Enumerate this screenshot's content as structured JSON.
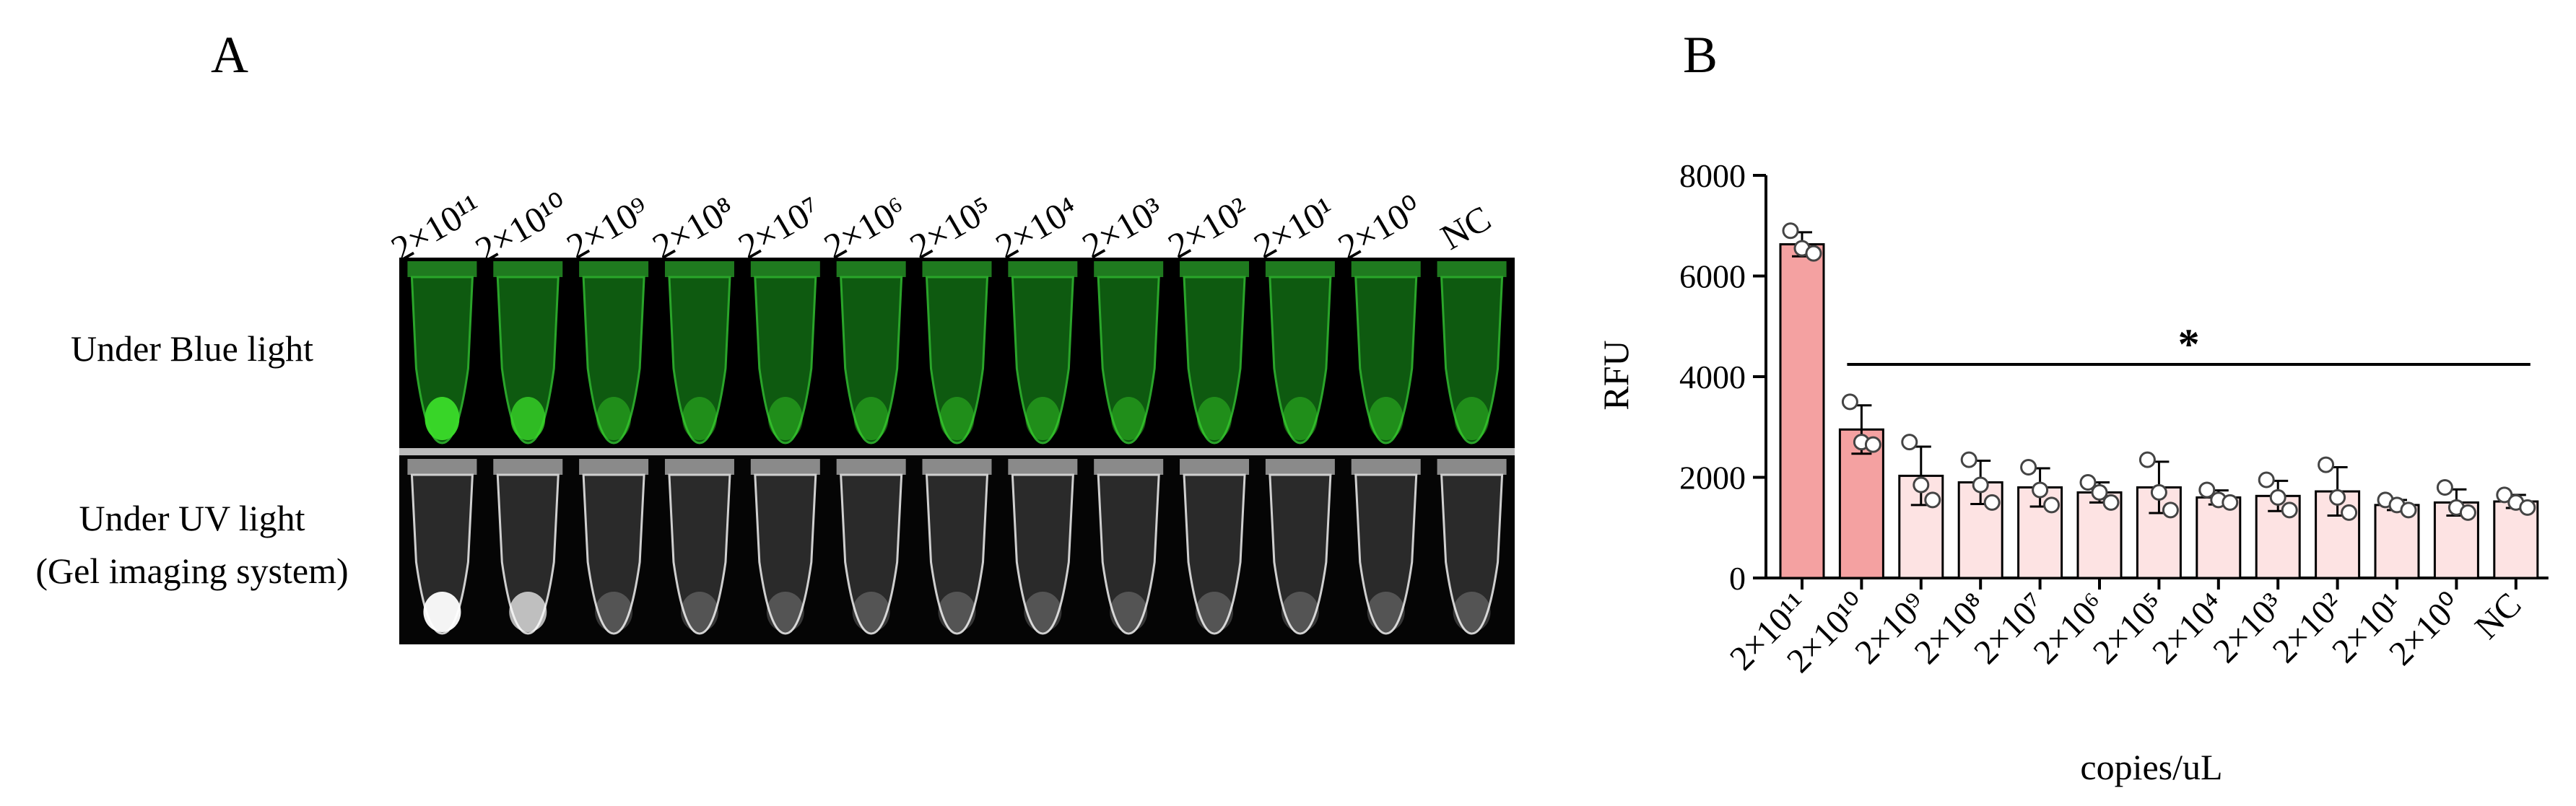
{
  "panel_a": {
    "label": "A",
    "column_labels": [
      "2×10¹¹",
      "2×10¹⁰",
      "2×10⁹",
      "2×10⁸",
      "2×10⁷",
      "2×10⁶",
      "2×10⁵",
      "2×10⁴",
      "2×10³",
      "2×10²",
      "2×10¹",
      "2×10⁰",
      "NC"
    ],
    "row_labels": [
      "Under Blue light",
      "Under UV light",
      "(Gel imaging system)"
    ]
  },
  "chart_data": {
    "type": "bar",
    "panel_label": "B",
    "categories": [
      "2×10¹¹",
      "2×10¹⁰",
      "2×10⁹",
      "2×10⁸",
      "2×10⁷",
      "2×10⁶",
      "2×10⁵",
      "2×10⁴",
      "2×10³",
      "2×10²",
      "2×10¹",
      "2×10⁰",
      "NC"
    ],
    "values": [
      6630,
      2950,
      2030,
      1900,
      1800,
      1700,
      1800,
      1600,
      1630,
      1720,
      1450,
      1500,
      1520
    ],
    "errors": [
      240,
      480,
      580,
      430,
      380,
      200,
      510,
      140,
      300,
      480,
      100,
      260,
      130
    ],
    "points": [
      [
        6900,
        6550,
        6450
      ],
      [
        3500,
        2700,
        2650
      ],
      [
        2700,
        1850,
        1550
      ],
      [
        2350,
        1850,
        1500
      ],
      [
        2200,
        1750,
        1450
      ],
      [
        1900,
        1700,
        1500
      ],
      [
        2350,
        1700,
        1350
      ],
      [
        1750,
        1550,
        1500
      ],
      [
        1950,
        1600,
        1350
      ],
      [
        2250,
        1600,
        1300
      ],
      [
        1550,
        1450,
        1350
      ],
      [
        1800,
        1400,
        1300
      ],
      [
        1650,
        1500,
        1400
      ]
    ],
    "colors": [
      "#f4a1a1",
      "#f4a1a1",
      "#fde3e3",
      "#fde3e3",
      "#fde3e3",
      "#fde3e3",
      "#fde3e3",
      "#fde3e3",
      "#fde3e3",
      "#fde3e3",
      "#fde3e3",
      "#fde3e3",
      "#fde3e3"
    ],
    "ylim": [
      0,
      8000
    ],
    "yticks": [
      0,
      2000,
      4000,
      6000,
      8000
    ],
    "ylabel": "RFU",
    "xlabel": "copies/uL",
    "annotation": "*"
  }
}
